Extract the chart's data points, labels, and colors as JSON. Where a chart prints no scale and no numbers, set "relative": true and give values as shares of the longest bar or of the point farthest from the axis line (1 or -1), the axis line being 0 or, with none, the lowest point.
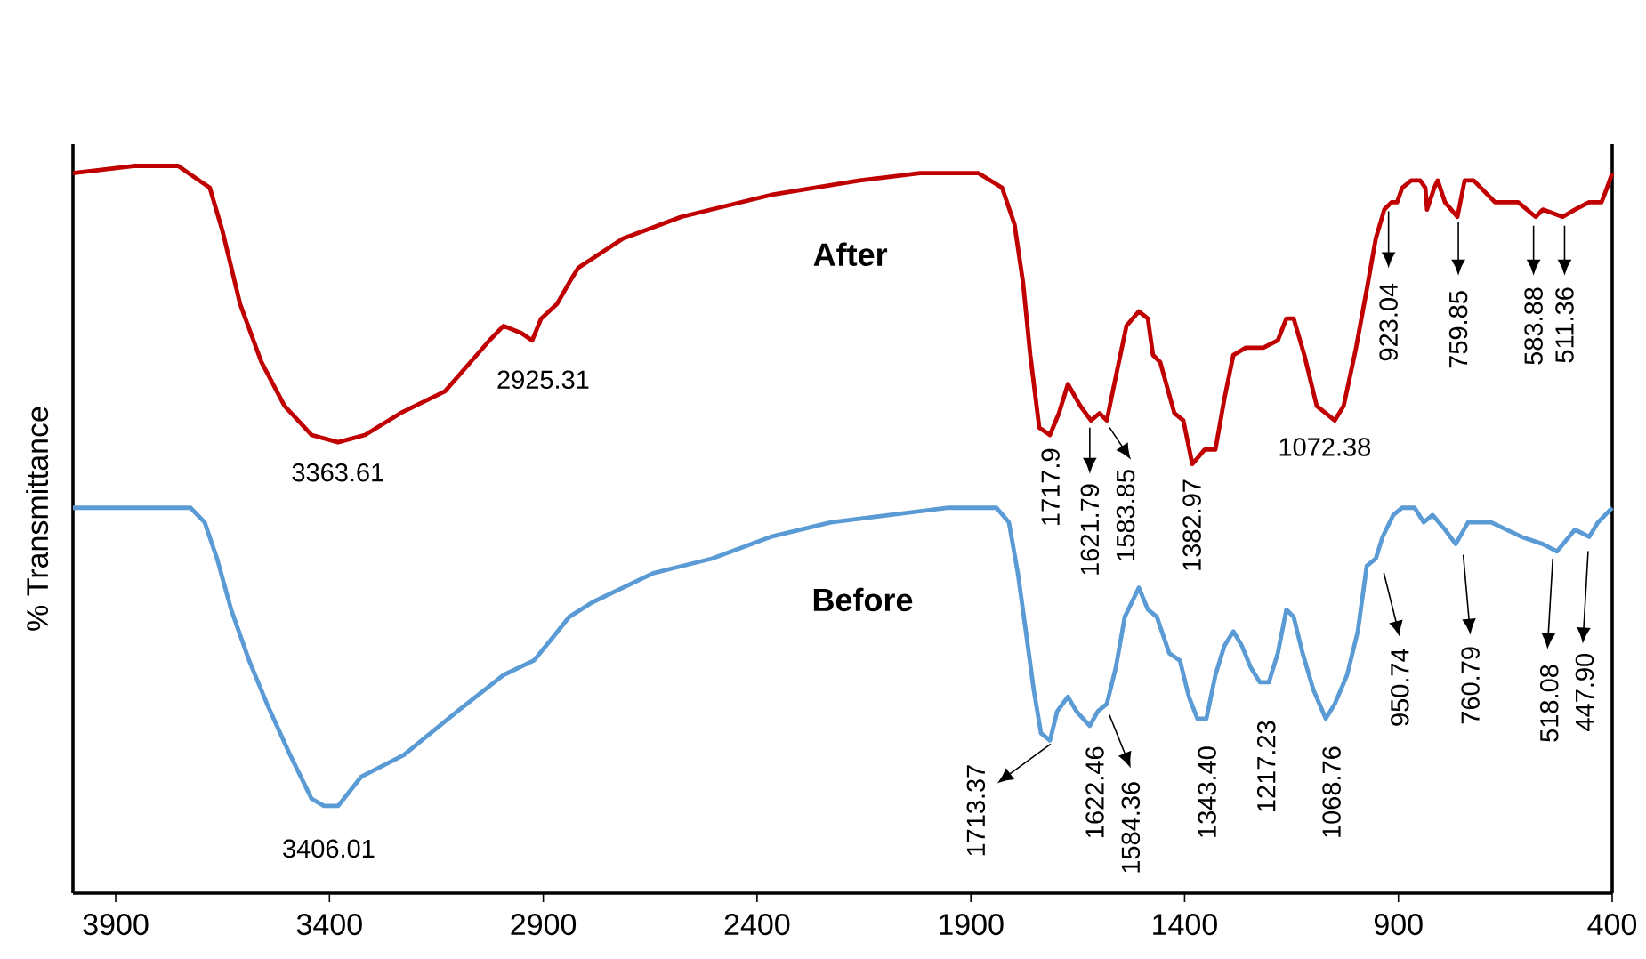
{
  "chart_data": {
    "type": "line",
    "relative": true,
    "ylabel": "% Transmittance",
    "xlim": [
      4000,
      400
    ],
    "xticks": [
      3900,
      3400,
      2900,
      2400,
      1900,
      1400,
      900,
      400
    ],
    "series": [
      {
        "name": "After",
        "color": "#c00000",
        "x": [
          4000,
          3858,
          3754,
          3705,
          3680,
          3650,
          3609,
          3559,
          3505,
          3442,
          3380,
          3317,
          3234,
          3130,
          3026,
          2993,
          2951,
          2926,
          2905,
          2868,
          2839,
          2818,
          2714,
          2577,
          2368,
          2160,
          2019,
          1882,
          1827,
          1798,
          1778,
          1761,
          1740,
          1715,
          1694,
          1673,
          1644,
          1619,
          1599,
          1582,
          1561,
          1536,
          1507,
          1486,
          1474,
          1457,
          1424,
          1403,
          1382,
          1353,
          1328,
          1307,
          1286,
          1257,
          1216,
          1182,
          1162,
          1145,
          1120,
          1091,
          1070,
          1049,
          1028,
          999,
          974,
          953,
          933,
          916,
          903,
          891,
          870,
          849,
          837,
          833,
          816,
          808,
          791,
          762,
          745,
          724,
          674,
          620,
          579,
          562,
          516,
          487,
          454,
          425,
          412,
          400
        ],
        "values": [
          0.99,
          1.0,
          1.0,
          0.98,
          0.97,
          0.91,
          0.81,
          0.73,
          0.67,
          0.63,
          0.62,
          0.63,
          0.66,
          0.69,
          0.76,
          0.78,
          0.77,
          0.76,
          0.79,
          0.81,
          0.84,
          0.86,
          0.9,
          0.93,
          0.96,
          0.98,
          0.99,
          0.99,
          0.97,
          0.92,
          0.84,
          0.74,
          0.64,
          0.63,
          0.66,
          0.7,
          0.67,
          0.65,
          0.66,
          0.65,
          0.71,
          0.78,
          0.8,
          0.79,
          0.74,
          0.73,
          0.66,
          0.65,
          0.59,
          0.61,
          0.61,
          0.68,
          0.74,
          0.75,
          0.75,
          0.76,
          0.79,
          0.79,
          0.74,
          0.67,
          0.66,
          0.65,
          0.67,
          0.75,
          0.83,
          0.9,
          0.94,
          0.95,
          0.95,
          0.97,
          0.98,
          0.98,
          0.97,
          0.94,
          0.97,
          0.98,
          0.95,
          0.93,
          0.98,
          0.98,
          0.95,
          0.95,
          0.93,
          0.94,
          0.93,
          0.94,
          0.95,
          0.95,
          0.97,
          0.99
        ]
      },
      {
        "name": "Before",
        "color": "#5b9bd5",
        "x": [
          4000,
          3858,
          3725,
          3692,
          3663,
          3630,
          3588,
          3546,
          3492,
          3442,
          3413,
          3380,
          3326,
          3226,
          3101,
          2993,
          2922,
          2880,
          2839,
          2785,
          2643,
          2506,
          2368,
          2227,
          2090,
          1952,
          1840,
          1811,
          1790,
          1769,
          1753,
          1736,
          1715,
          1698,
          1673,
          1653,
          1622,
          1603,
          1582,
          1561,
          1540,
          1507,
          1486,
          1465,
          1436,
          1411,
          1390,
          1370,
          1349,
          1328,
          1307,
          1286,
          1266,
          1245,
          1224,
          1203,
          1182,
          1162,
          1145,
          1124,
          1099,
          1070,
          1049,
          1020,
          995,
          974,
          953,
          937,
          912,
          891,
          862,
          841,
          820,
          791,
          766,
          737,
          683,
          612,
          562,
          529,
          487,
          454,
          433,
          400
        ],
        "values": [
          0.53,
          0.53,
          0.53,
          0.51,
          0.46,
          0.39,
          0.32,
          0.26,
          0.19,
          0.13,
          0.12,
          0.12,
          0.16,
          0.19,
          0.25,
          0.3,
          0.32,
          0.35,
          0.38,
          0.4,
          0.44,
          0.46,
          0.49,
          0.51,
          0.52,
          0.53,
          0.53,
          0.51,
          0.44,
          0.35,
          0.28,
          0.22,
          0.21,
          0.25,
          0.27,
          0.25,
          0.23,
          0.25,
          0.26,
          0.31,
          0.38,
          0.42,
          0.39,
          0.38,
          0.33,
          0.32,
          0.27,
          0.24,
          0.24,
          0.3,
          0.34,
          0.36,
          0.34,
          0.31,
          0.29,
          0.29,
          0.33,
          0.39,
          0.38,
          0.33,
          0.28,
          0.24,
          0.26,
          0.3,
          0.36,
          0.45,
          0.46,
          0.49,
          0.52,
          0.53,
          0.53,
          0.51,
          0.52,
          0.5,
          0.48,
          0.51,
          0.51,
          0.49,
          0.48,
          0.47,
          0.5,
          0.49,
          0.51,
          0.53
        ]
      }
    ],
    "annotations": [
      {
        "text": "3363.61",
        "x": 3363.61,
        "y": 0.62
      },
      {
        "text": "2925.31",
        "x": 2925.31,
        "y": 0.76
      },
      {
        "text": "1717.9",
        "x": 1717.9,
        "y": 0.63
      },
      {
        "text": "1621.79",
        "x": 1621.79,
        "y": 0.65
      },
      {
        "text": "1583.85",
        "x": 1583.85,
        "y": 0.65
      },
      {
        "text": "1382.97",
        "x": 1382.97,
        "y": 0.59
      },
      {
        "text": "1072.38",
        "x": 1072.38,
        "y": 0.66
      },
      {
        "text": "923.04",
        "x": 923.04,
        "y": 0.95
      },
      {
        "text": "759.85",
        "x": 759.85,
        "y": 0.93
      },
      {
        "text": "583.88",
        "x": 583.88,
        "y": 0.93
      },
      {
        "text": "511.36",
        "x": 511.36,
        "y": 0.93
      },
      {
        "text": "3406.01",
        "x": 3406.01,
        "y": 0.12
      },
      {
        "text": "1713.37",
        "x": 1713.37,
        "y": 0.21
      },
      {
        "text": "1622.46",
        "x": 1622.46,
        "y": 0.23
      },
      {
        "text": "1584.36",
        "x": 1584.36,
        "y": 0.26
      },
      {
        "text": "1343.40",
        "x": 1343.4,
        "y": 0.24
      },
      {
        "text": "1217.23",
        "x": 1217.23,
        "y": 0.29
      },
      {
        "text": "1068.76",
        "x": 1068.76,
        "y": 0.24
      },
      {
        "text": "950.74",
        "x": 950.74,
        "y": 0.46
      },
      {
        "text": "760.79",
        "x": 760.79,
        "y": 0.48
      },
      {
        "text": "518.08",
        "x": 518.08,
        "y": 0.47
      },
      {
        "text": "447.90",
        "x": 447.9,
        "y": 0.49
      }
    ]
  }
}
